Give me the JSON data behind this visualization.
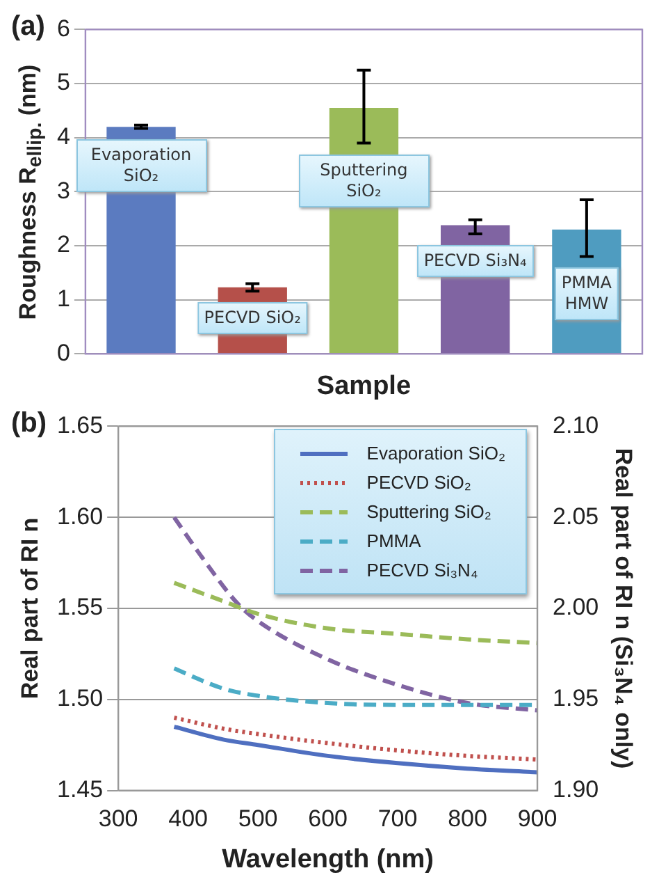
{
  "chart_data": [
    {
      "type": "bar",
      "title": "(a)",
      "xlabel": "Sample",
      "ylabel": "Roughness R$_{ellip.}$ (nm)",
      "categories": [
        "Evaporation SiO₂",
        "PECVD SiO₂",
        "Sputtering SiO₂",
        "PECVD Si₃N₄",
        "PMMA HMW"
      ],
      "values": [
        4.2,
        1.23,
        4.55,
        2.38,
        2.3
      ],
      "colors": [
        "#5b7bc0",
        "#b5504a",
        "#9bbb59",
        "#8064a2",
        "#4f9cc0"
      ],
      "errors": [
        0.03,
        0.07,
        [
          3.9,
          5.25
        ],
        [
          2.22,
          2.48
        ],
        [
          1.8,
          2.85
        ]
      ],
      "ylim": [
        0,
        6
      ],
      "yticks": [
        0,
        1,
        2,
        3,
        4,
        5,
        6
      ],
      "grid": "y",
      "tick_labels": "y",
      "legend": false
    },
    {
      "type": "line",
      "title": "(b)",
      "xlabel": "Wavelength (nm)",
      "ylabel": "Real part of RI n",
      "y2label": "Real part of RI n (Si₃N₄ only)",
      "series": [
        {
          "name": "Evaporation SiO₂",
          "color": "#4f6fc0",
          "line_style": "solid",
          "x": [
            380,
            450,
            500,
            600,
            700,
            800,
            900
          ],
          "values": [
            1.485,
            1.478,
            1.475,
            1.469,
            1.465,
            1.462,
            1.46
          ]
        },
        {
          "name": "PECVD SiO₂",
          "color": "#c0504d",
          "line_style": "dotted",
          "x": [
            380,
            450,
            500,
            600,
            700,
            800,
            900
          ],
          "values": [
            1.49,
            1.484,
            1.481,
            1.476,
            1.472,
            1.469,
            1.467
          ]
        },
        {
          "name": "Sputtering SiO₂",
          "color": "#9bbb59",
          "line_style": "dashed",
          "x": [
            380,
            450,
            500,
            600,
            700,
            800,
            900
          ],
          "values": [
            1.564,
            1.554,
            1.547,
            1.539,
            1.536,
            1.533,
            1.531
          ]
        },
        {
          "name": "PMMA",
          "color": "#4bacc6",
          "line_style": "dashed",
          "x": [
            380,
            450,
            500,
            600,
            700,
            800,
            900
          ],
          "values": [
            1.517,
            1.506,
            1.502,
            1.498,
            1.497,
            1.497,
            1.497
          ]
        },
        {
          "name": "PECVD Si₃N₄",
          "color": "#8064a2",
          "line_style": "dashed",
          "axis": "y2",
          "x": [
            380,
            420,
            470,
            500,
            600,
            700,
            800,
            900
          ],
          "values": [
            2.05,
            2.028,
            2.003,
            1.993,
            1.972,
            1.958,
            1.948,
            1.944
          ]
        }
      ],
      "xlim": [
        300,
        900
      ],
      "xticks": [
        300,
        400,
        500,
        600,
        700,
        800,
        900
      ],
      "ylim": [
        1.45,
        1.65
      ],
      "yticks": [
        1.45,
        {
          "value": 1.5,
          "label": "1.50"
        },
        1.55,
        {
          "value": 1.6,
          "label": "1.60"
        },
        1.65
      ],
      "y2lim": [
        1.9,
        2.1
      ],
      "y2ticks": [
        {
          "value": 1.9,
          "label": "1.90"
        },
        1.95,
        {
          "value": 2.0,
          "label": "2.00"
        },
        2.05,
        {
          "value": 2.1,
          "label": "2.10"
        }
      ],
      "grid": "y",
      "legend": "top right"
    }
  ]
}
